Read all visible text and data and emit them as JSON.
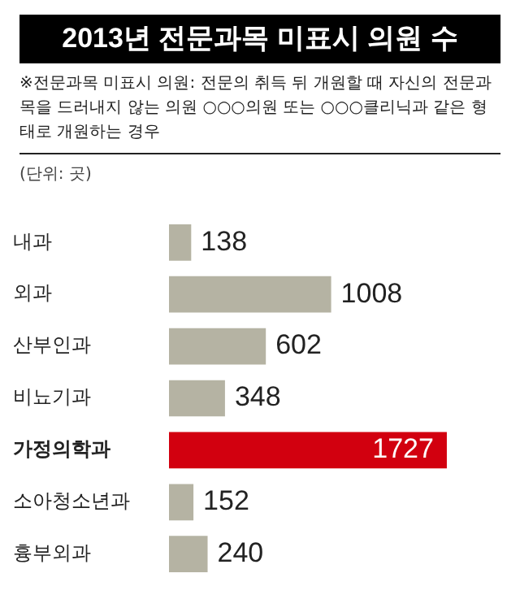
{
  "chart_data": {
    "type": "bar",
    "orientation": "horizontal",
    "title": "2013년 전문과목 미표시 의원 수",
    "subtitle": "※전문과목 미표시 의원: 전문의 취득 뒤 개원할 때 자신의 전문과목을 드러내지 않는 의원 ○○○의원 또는 ○○○클리닉과 같은 형태로 개원하는 경우",
    "annotations": [
      "(단위: 곳)"
    ],
    "categories": [
      "내과",
      "외과",
      "산부인과",
      "비뇨기과",
      "가정의학과",
      "소아청소년과",
      "흉부외과"
    ],
    "values": [
      138,
      1008,
      602,
      348,
      1727,
      152,
      240
    ],
    "colors": [
      "#b5b3a3",
      "#b5b3a3",
      "#b5b3a3",
      "#b5b3a3",
      "#d2000f",
      "#b5b3a3",
      "#b5b3a3"
    ],
    "data_labels": true,
    "grid": false,
    "legend": false
  }
}
